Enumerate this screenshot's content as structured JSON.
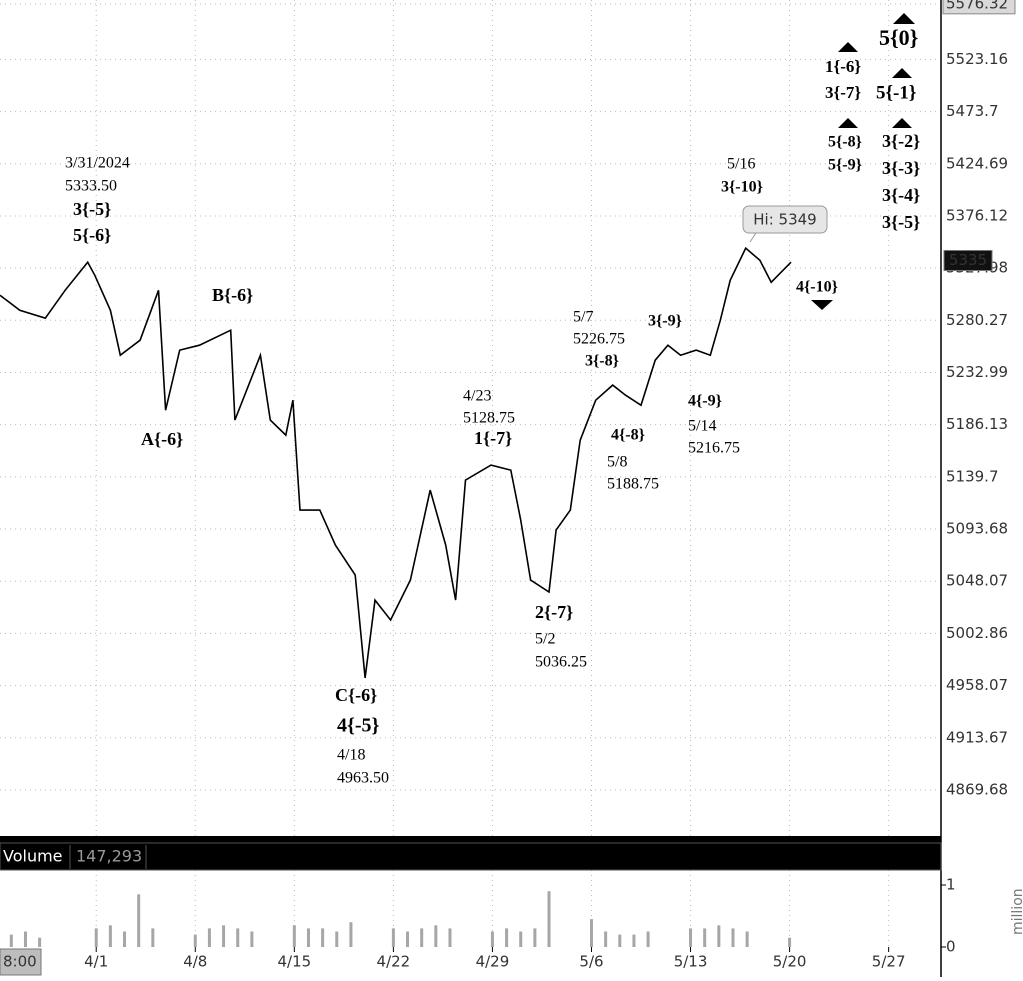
{
  "chart_data": [
    {
      "type": "line",
      "log_scale": true,
      "grid": true,
      "color": "#000000",
      "xlim": [
        85.2,
        151.7
      ],
      "xticks": [
        {
          "value": 92,
          "label": "4/1"
        },
        {
          "value": 99,
          "label": "4/8"
        },
        {
          "value": 106,
          "label": "4/15"
        },
        {
          "value": 113,
          "label": "4/22"
        },
        {
          "value": 120,
          "label": "4/29"
        },
        {
          "value": 127,
          "label": "5/6"
        },
        {
          "value": 134,
          "label": "5/13"
        },
        {
          "value": 141,
          "label": "5/20"
        },
        {
          "value": 148,
          "label": "5/27"
        }
      ],
      "ylim": [
        4832,
        5580
      ],
      "yticks": [
        5576.32,
        5523.16,
        5473.7,
        5424.69,
        5376.12,
        5327.98,
        5280.27,
        5232.99,
        5186.13,
        5139.7,
        5093.68,
        5048.07,
        5002.86,
        4958.07,
        4913.67,
        4869.68
      ],
      "x": [
        85.2,
        86.6,
        88.4,
        89.8,
        91.4,
        91.9,
        93.0,
        93.7,
        95.1,
        96.4,
        96.9,
        97.9,
        99.3,
        101.5,
        101.8,
        103.6,
        104.3,
        105.4,
        105.9,
        106.4,
        107.8,
        108.9,
        110.3,
        111.0,
        111.7,
        112.8,
        114.2,
        115.6,
        116.7,
        117.4,
        118.1,
        119.9,
        121.3,
        122.0,
        122.7,
        124.0,
        124.5,
        125.5,
        126.2,
        127.3,
        128.5,
        129.4,
        130.5,
        131.5,
        132.4,
        133.3,
        134.4,
        135.4,
        136.1,
        136.8,
        137.9,
        138.9,
        139.7,
        141.1
      ],
      "values": [
        5303.1,
        5289.4,
        5282.2,
        5307.7,
        5333.4,
        5321.4,
        5289.4,
        5248.6,
        5262.2,
        5307.7,
        5199.1,
        5253.2,
        5257.7,
        5271.3,
        5190.2,
        5248.6,
        5190.2,
        5176.8,
        5208.1,
        5110.3,
        5110.3,
        5079.6,
        5053.5,
        4964.6,
        5031.7,
        5014.4,
        5049.1,
        5128.0,
        5079.6,
        5031.7,
        5136.8,
        5150.1,
        5145.7,
        5101.6,
        5049.1,
        5038.7,
        5092.8,
        5110.3,
        5172.3,
        5208.1,
        5221.6,
        5212.6,
        5203.6,
        5244.1,
        5257.7,
        5248.6,
        5253.2,
        5248.6,
        5280.3,
        5316.8,
        5346.3,
        5335.2,
        5315.0,
        5333.4
      ],
      "last_price": 5335,
      "cursor_time": "8:00",
      "annotations": [
        "3/31/2024",
        "5333.50",
        "3{-5}",
        "5{-6}",
        "B{-6}",
        "A{-6}",
        "C{-6}",
        "4{-5}",
        "4/18",
        "4963.50",
        "4/23",
        "5128.75",
        "1{-7}",
        "2{-7}",
        "5/2",
        "5036.25",
        "5/7",
        "5226.75",
        "3{-8}",
        "4{-8}",
        "5/8",
        "5188.75",
        "3{-9}",
        "4{-9}",
        "5/14",
        "5216.75",
        "5/16",
        "3{-10}",
        "4{-10}",
        "1{-6}",
        "3{-7}",
        "5{-8}",
        "5{-9}",
        "5{0}",
        "5{-1}",
        "3{-2}",
        "3{-3}",
        "3{-4}",
        "3{-5}",
        "Hi: 5349"
      ]
    },
    {
      "type": "bar",
      "title": "Volume",
      "color": "#a6a6a6",
      "y_label": "million",
      "current_volume": {
        "value": 147293,
        "label": "147,293"
      },
      "xlim": [
        85.2,
        151.7
      ],
      "ylim": [
        0,
        1.21
      ],
      "yticks": [
        0,
        1
      ],
      "x": [
        86,
        87,
        88,
        92,
        93,
        94,
        95,
        96,
        99,
        100,
        101,
        102,
        103,
        106,
        107,
        108,
        109,
        110,
        113,
        114,
        115,
        116,
        117,
        120,
        121,
        122,
        123,
        124,
        127,
        128,
        129,
        130,
        131,
        134,
        135,
        136,
        137,
        138,
        141
      ],
      "values": [
        0.2,
        0.25,
        0.15,
        0.3,
        0.35,
        0.25,
        0.85,
        0.3,
        0.2,
        0.3,
        0.35,
        0.3,
        0.25,
        0.35,
        0.3,
        0.3,
        0.25,
        0.4,
        0.3,
        0.25,
        0.3,
        0.35,
        0.3,
        0.25,
        0.3,
        0.25,
        0.3,
        0.9,
        0.45,
        0.25,
        0.2,
        0.2,
        0.25,
        0.3,
        0.3,
        0.35,
        0.3,
        0.25,
        0.15
      ]
    }
  ]
}
